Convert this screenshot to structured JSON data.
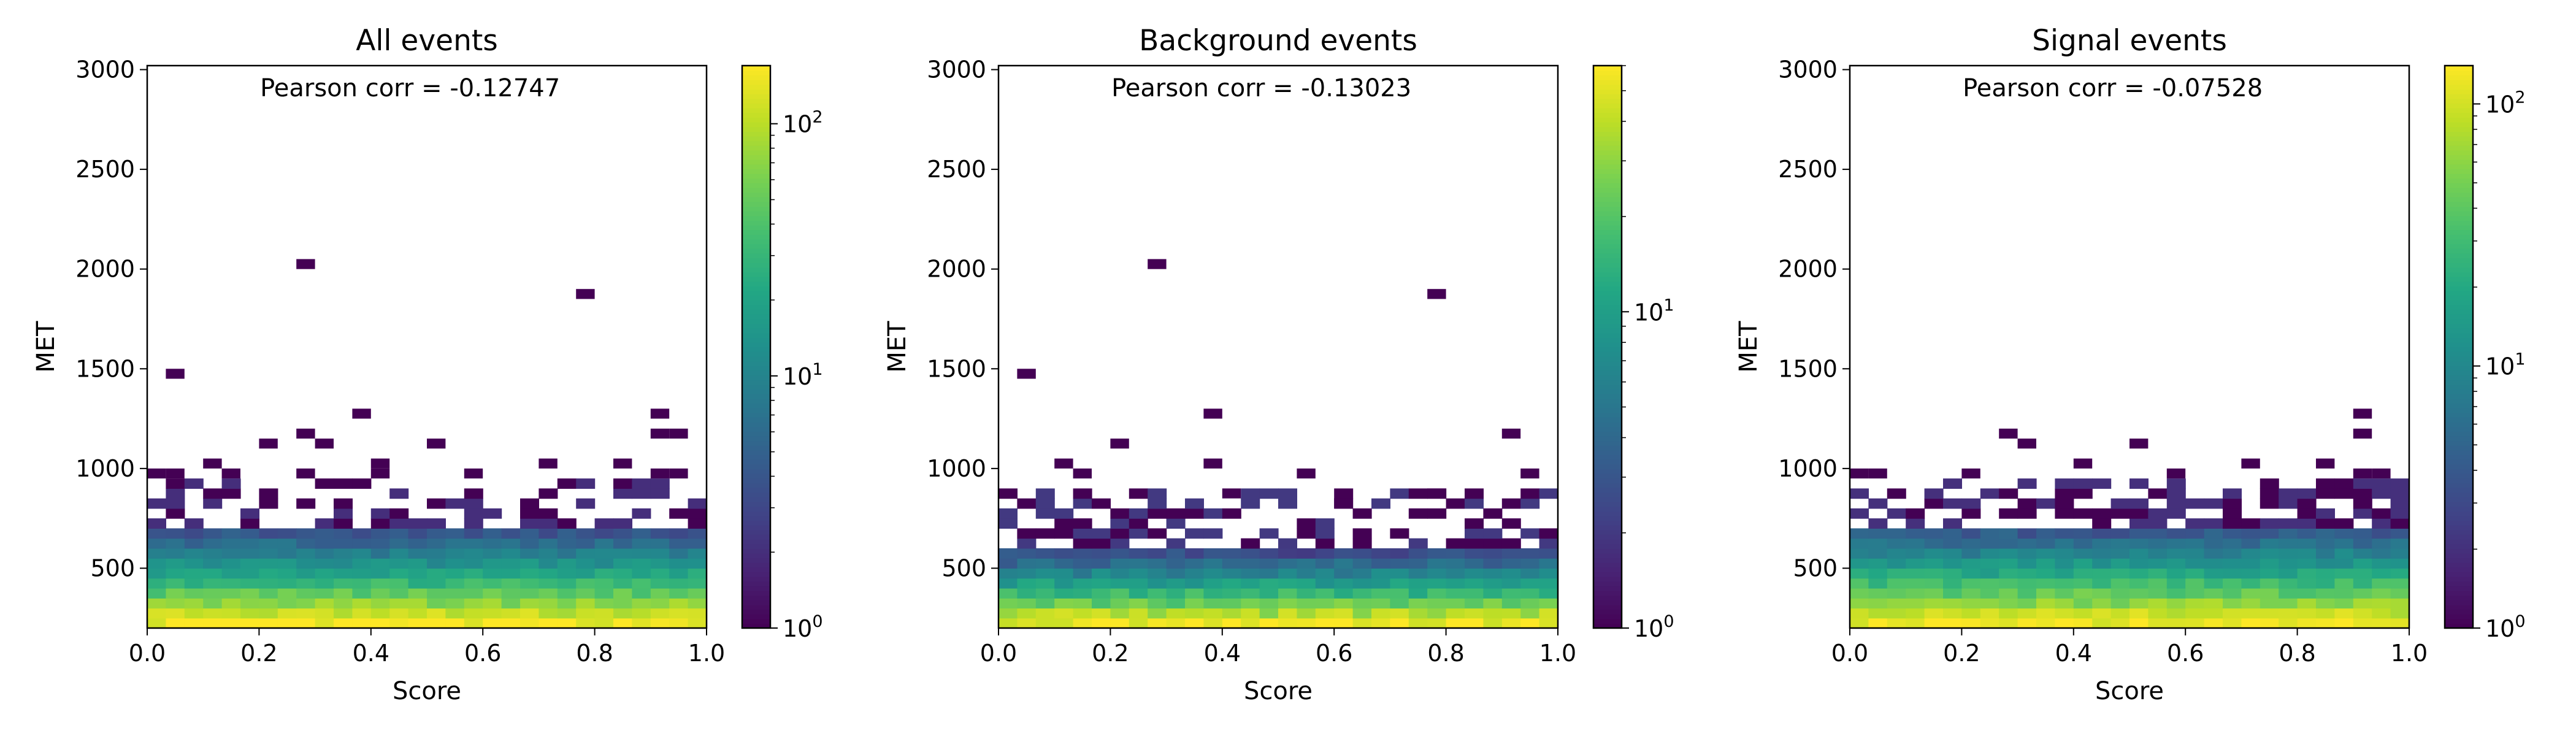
{
  "chart_data": [
    {
      "type": "heatmap",
      "title": "All events",
      "xlabel": "Score",
      "ylabel": "MET",
      "xlim": [
        0.0,
        1.0
      ],
      "ylim": [
        200,
        3020
      ],
      "x_ticks": [
        "0.0",
        "0.2",
        "0.4",
        "0.6",
        "0.8",
        "1.0"
      ],
      "y_ticks": [
        "500",
        "1000",
        "1500",
        "2000",
        "2500",
        "3000"
      ],
      "annotation": "Pearson corr = -0.12747",
      "colorbar": {
        "scale": "log",
        "min": 1,
        "max": 170,
        "colormap": "viridis",
        "ticks": [
          {
            "value": 1,
            "base": "10",
            "exp": "0"
          },
          {
            "value": 10,
            "base": "10",
            "exp": "1"
          },
          {
            "value": 100,
            "base": "10",
            "exp": "2"
          }
        ]
      },
      "x_bins": 30,
      "y_bin_width": 50,
      "outliers": [
        {
          "x": 0.27,
          "y": 2040,
          "count": 1
        },
        {
          "x": 0.78,
          "y": 1890,
          "count": 1
        },
        {
          "x": 0.065,
          "y": 1460,
          "count": 1
        },
        {
          "x": 0.37,
          "y": 1250,
          "count": 1
        },
        {
          "x": 0.91,
          "y": 1250,
          "count": 1
        },
        {
          "x": 0.27,
          "y": 1170,
          "count": 1
        },
        {
          "x": 0.91,
          "y": 1190,
          "count": 1
        },
        {
          "x": 0.935,
          "y": 1190,
          "count": 1
        },
        {
          "x": 0.22,
          "y": 1110,
          "count": 1
        },
        {
          "x": 0.32,
          "y": 1110,
          "count": 1
        },
        {
          "x": 0.52,
          "y": 1110,
          "count": 1
        },
        {
          "x": 0.12,
          "y": 1040,
          "count": 1
        },
        {
          "x": 0.42,
          "y": 1040,
          "count": 1
        },
        {
          "x": 0.7,
          "y": 1040,
          "count": 1
        },
        {
          "x": 0.835,
          "y": 1040,
          "count": 1
        },
        {
          "x": 0.015,
          "y": 960,
          "count": 1
        },
        {
          "x": 0.065,
          "y": 960,
          "count": 1
        },
        {
          "x": 0.15,
          "y": 960,
          "count": 1
        },
        {
          "x": 0.27,
          "y": 960,
          "count": 1
        },
        {
          "x": 0.42,
          "y": 960,
          "count": 1
        },
        {
          "x": 0.57,
          "y": 960,
          "count": 1
        },
        {
          "x": 0.9,
          "y": 960,
          "count": 1
        },
        {
          "x": 0.965,
          "y": 960,
          "count": 1
        }
      ],
      "density": {
        "core_top": 700,
        "noise_top": 920,
        "peak_count": 170,
        "decay_per_bin": 2.1
      }
    },
    {
      "type": "heatmap",
      "title": "Background events",
      "xlabel": "Score",
      "ylabel": "MET",
      "xlim": [
        0.0,
        1.0
      ],
      "ylim": [
        200,
        3020
      ],
      "x_ticks": [
        "0.0",
        "0.2",
        "0.4",
        "0.6",
        "0.8",
        "1.0"
      ],
      "y_ticks": [
        "500",
        "1000",
        "1500",
        "2000",
        "2500",
        "3000"
      ],
      "annotation": "Pearson corr = -0.13023",
      "colorbar": {
        "scale": "log",
        "min": 1,
        "max": 60,
        "colormap": "viridis",
        "ticks": [
          {
            "value": 1,
            "base": "10",
            "exp": "0"
          },
          {
            "value": 10,
            "base": "10",
            "exp": "1"
          }
        ]
      },
      "x_bins": 30,
      "y_bin_width": 50,
      "outliers": [
        {
          "x": 0.27,
          "y": 2040,
          "count": 1
        },
        {
          "x": 0.78,
          "y": 1890,
          "count": 1
        },
        {
          "x": 0.065,
          "y": 1460,
          "count": 1
        },
        {
          "x": 0.37,
          "y": 1250,
          "count": 1
        },
        {
          "x": 0.93,
          "y": 1180,
          "count": 1
        },
        {
          "x": 0.22,
          "y": 1110,
          "count": 1
        },
        {
          "x": 0.12,
          "y": 1040,
          "count": 1
        },
        {
          "x": 0.37,
          "y": 1040,
          "count": 1
        },
        {
          "x": 0.935,
          "y": 960,
          "count": 1
        },
        {
          "x": 0.55,
          "y": 960,
          "count": 1
        },
        {
          "x": 0.15,
          "y": 960,
          "count": 1
        },
        {
          "x": 0.4,
          "y": 890,
          "count": 1
        },
        {
          "x": 0.63,
          "y": 820,
          "count": 1
        },
        {
          "x": 0.78,
          "y": 890,
          "count": 1
        }
      ],
      "density": {
        "core_top": 600,
        "noise_top": 860,
        "peak_count": 60,
        "decay_per_bin": 2.2
      }
    },
    {
      "type": "heatmap",
      "title": "Signal events",
      "xlabel": "Score",
      "ylabel": "MET",
      "xlim": [
        0.0,
        1.0
      ],
      "ylim": [
        200,
        3020
      ],
      "x_ticks": [
        "0.0",
        "0.2",
        "0.4",
        "0.6",
        "0.8",
        "1.0"
      ],
      "y_ticks": [
        "500",
        "1000",
        "1500",
        "2000",
        "2500",
        "3000"
      ],
      "annotation": "Pearson corr = -0.07528",
      "colorbar": {
        "scale": "log",
        "min": 1,
        "max": 140,
        "colormap": "viridis",
        "ticks": [
          {
            "value": 1,
            "base": "10",
            "exp": "0"
          },
          {
            "value": 10,
            "base": "10",
            "exp": "1"
          },
          {
            "value": 100,
            "base": "10",
            "exp": "2"
          }
        ]
      },
      "x_bins": 30,
      "y_bin_width": 50,
      "outliers": [
        {
          "x": 0.91,
          "y": 1250,
          "count": 1
        },
        {
          "x": 0.27,
          "y": 1170,
          "count": 1
        },
        {
          "x": 0.91,
          "y": 1190,
          "count": 1
        },
        {
          "x": 0.32,
          "y": 1110,
          "count": 1
        },
        {
          "x": 0.52,
          "y": 1110,
          "count": 1
        },
        {
          "x": 0.42,
          "y": 1040,
          "count": 1
        },
        {
          "x": 0.7,
          "y": 1040,
          "count": 1
        },
        {
          "x": 0.835,
          "y": 1040,
          "count": 1
        },
        {
          "x": 0.015,
          "y": 960,
          "count": 1
        },
        {
          "x": 0.065,
          "y": 960,
          "count": 1
        },
        {
          "x": 0.2,
          "y": 960,
          "count": 1
        },
        {
          "x": 0.57,
          "y": 960,
          "count": 1
        },
        {
          "x": 0.9,
          "y": 960,
          "count": 1
        },
        {
          "x": 0.965,
          "y": 960,
          "count": 1
        }
      ],
      "density": {
        "core_top": 700,
        "noise_top": 920,
        "peak_count": 140,
        "decay_per_bin": 2.0
      }
    }
  ]
}
